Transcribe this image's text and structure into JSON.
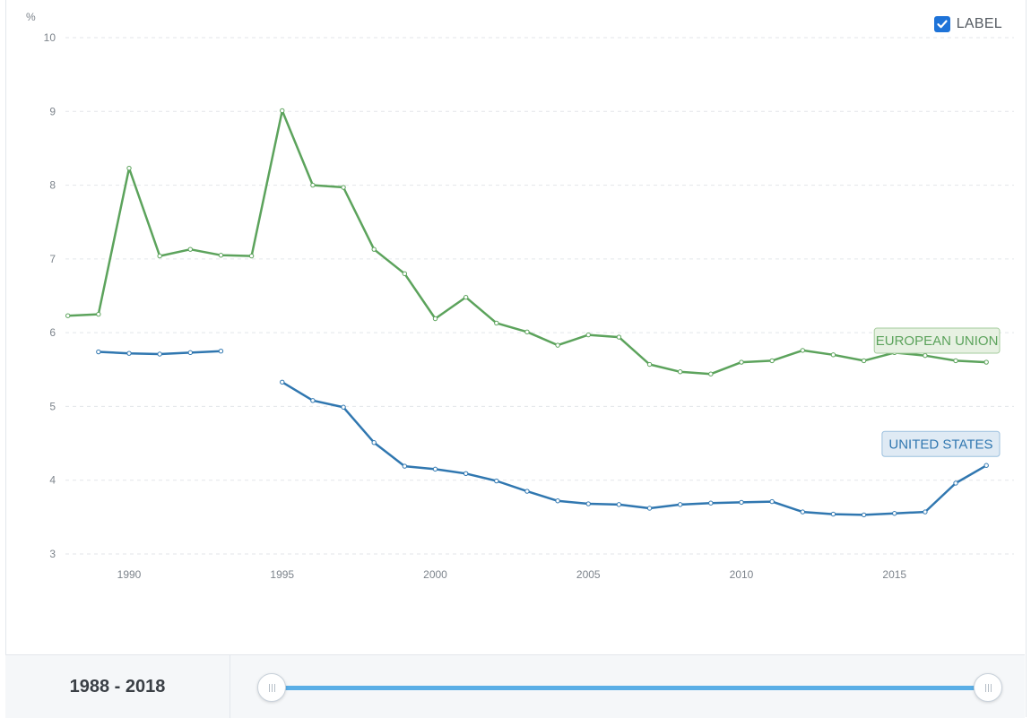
{
  "controls": {
    "label_toggle": {
      "text": "LABEL",
      "checked": true,
      "color": "#1e73d8"
    },
    "range": {
      "start": "1988",
      "separator": " - ",
      "end": "2018"
    },
    "slider_color": "#5aaee6"
  },
  "chart_data": {
    "type": "line",
    "ylabel": "%",
    "ylim": [
      3,
      10
    ],
    "yticks": [
      3,
      4,
      5,
      6,
      7,
      8,
      9,
      10
    ],
    "xlim": [
      1988,
      2018
    ],
    "xticks": [
      1990,
      1995,
      2000,
      2005,
      2010,
      2015
    ],
    "grid": true,
    "series": [
      {
        "name": "EUROPEAN UNION",
        "color": "#5ca35c",
        "label_bg": "#e7f1e2",
        "label_border": "#a6cc9d",
        "x": [
          1988,
          1989,
          1990,
          1991,
          1992,
          1993,
          1994,
          1995,
          1996,
          1997,
          1998,
          1999,
          2000,
          2001,
          2002,
          2003,
          2004,
          2005,
          2006,
          2007,
          2008,
          2009,
          2010,
          2011,
          2012,
          2013,
          2014,
          2015,
          2016,
          2017,
          2018
        ],
        "y": [
          6.23,
          6.25,
          8.23,
          7.04,
          7.13,
          7.05,
          7.04,
          9.01,
          8.0,
          7.97,
          7.13,
          6.8,
          6.19,
          6.48,
          6.13,
          6.01,
          5.83,
          5.97,
          5.94,
          5.57,
          5.47,
          5.44,
          5.6,
          5.62,
          5.76,
          5.7,
          5.62,
          5.73,
          5.69,
          5.62,
          5.6
        ]
      },
      {
        "name": "UNITED STATES",
        "color": "#3077b0",
        "label_bg": "#dfeaf4",
        "label_border": "#9cc0de",
        "x": [
          1988,
          1989,
          1990,
          1991,
          1992,
          1993,
          1994,
          1995,
          1996,
          1997,
          1998,
          1999,
          2000,
          2001,
          2002,
          2003,
          2004,
          2005,
          2006,
          2007,
          2008,
          2009,
          2010,
          2011,
          2012,
          2013,
          2014,
          2015,
          2016,
          2017,
          2018
        ],
        "y": [
          null,
          5.74,
          5.72,
          5.71,
          5.73,
          5.75,
          null,
          5.33,
          5.08,
          4.99,
          4.51,
          4.19,
          4.15,
          4.09,
          3.99,
          3.85,
          3.72,
          3.68,
          3.67,
          3.62,
          3.67,
          3.69,
          3.7,
          3.71,
          3.57,
          3.54,
          3.53,
          3.55,
          3.57,
          3.96,
          4.2
        ]
      }
    ]
  }
}
